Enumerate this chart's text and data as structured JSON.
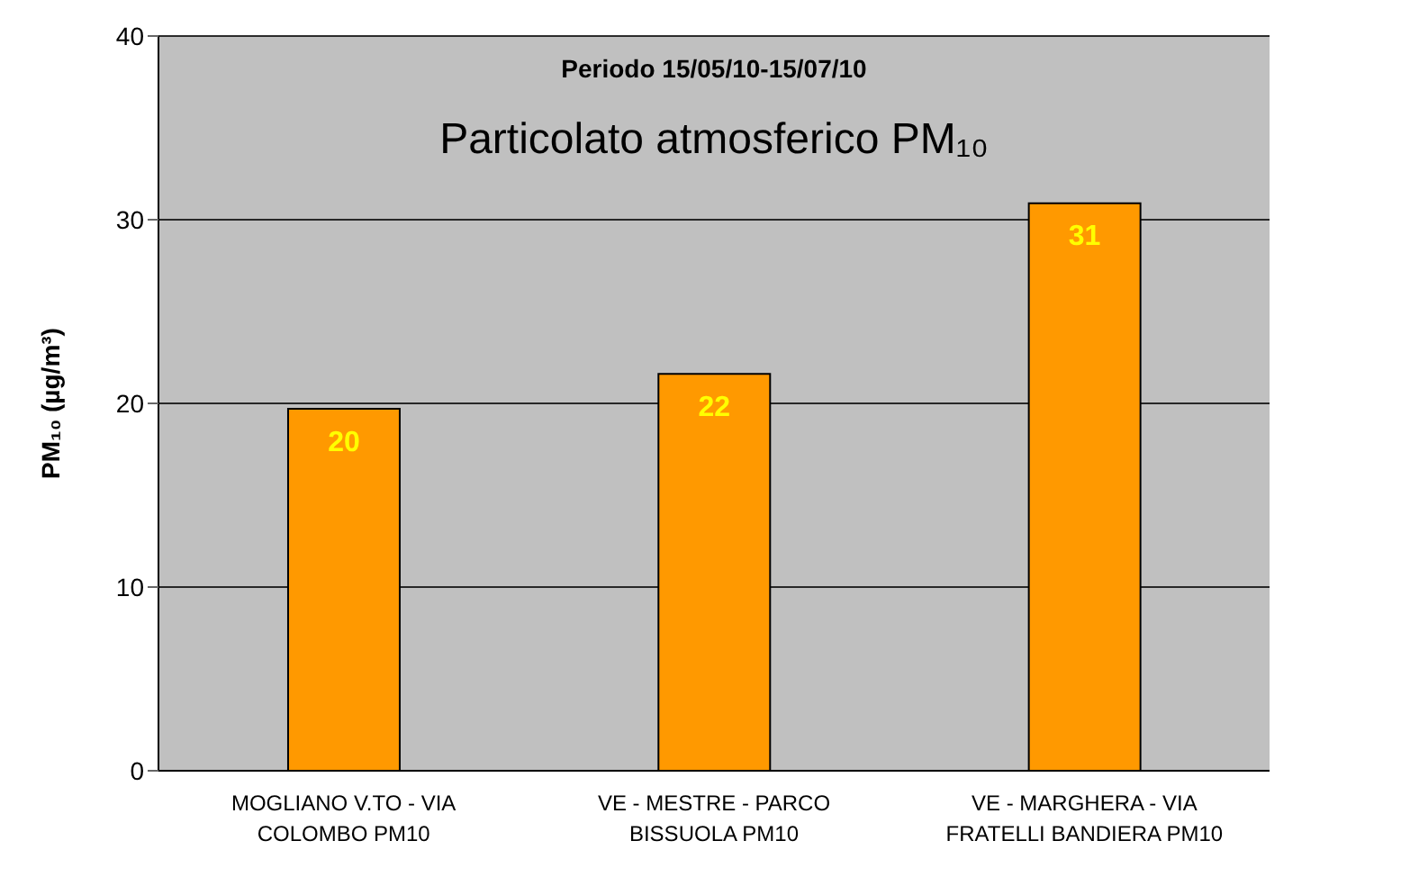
{
  "chart_data": {
    "type": "bar",
    "title": "Particolato atmosferico PM₁₀",
    "subtitle": "Periodo 15/05/10-15/07/10",
    "ylabel": "PM₁₀ (µg/m³)",
    "categories": [
      "MOGLIANO V.TO - VIA COLOMBO PM10",
      "VE - MESTRE - PARCO BISSUOLA PM10",
      "VE - MARGHERA - VIA FRATELLI BANDIERA PM10"
    ],
    "values": [
      19.7,
      21.6,
      30.9
    ],
    "value_labels": [
      "20",
      "22",
      "31"
    ],
    "color": "#ff9900",
    "ylim": [
      0,
      40
    ],
    "yticks": [
      0,
      10,
      20,
      30,
      40
    ],
    "grid": "y"
  }
}
